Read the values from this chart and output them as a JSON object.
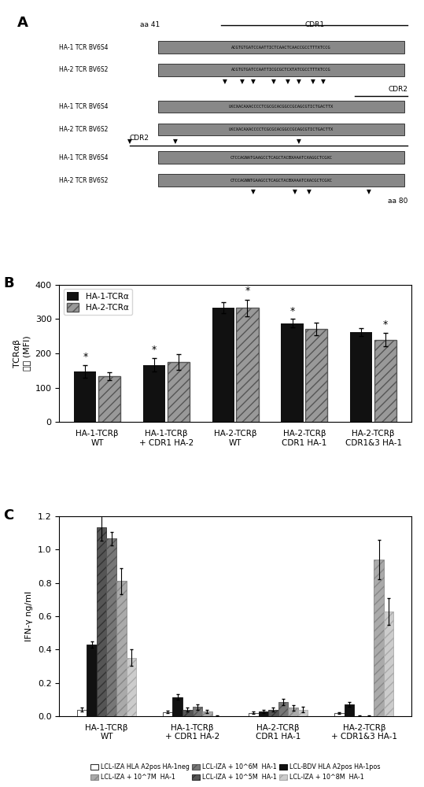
{
  "panel_B": {
    "groups": [
      "HA-1-TCRβ\nWT",
      "HA-1-TCRβ\n+ CDR1 HA-2",
      "HA-2-TCRβ\nWT",
      "HA-2-TCRβ\nCDR1 HA-1",
      "HA-2-TCRβ\nCDR1&3 HA-1"
    ],
    "ha1_values": [
      148,
      167,
      333,
      288,
      262
    ],
    "ha2_values": [
      134,
      175,
      332,
      272,
      240
    ],
    "ha1_errors": [
      18,
      20,
      15,
      12,
      12
    ],
    "ha2_errors": [
      12,
      22,
      25,
      18,
      20
    ],
    "ha1_color": "#111111",
    "ha2_color": "#999999",
    "ha2_hatch": "///",
    "ylabel_top": "TCRαβ",
    "ylabel_bottom": "表达 (MFI)",
    "ylim": [
      0,
      400
    ],
    "yticks": [
      0,
      100,
      200,
      300,
      400
    ],
    "legend_labels": [
      "HA-1-TCRα",
      "HA-2-TCRα"
    ],
    "star_x_adjust": [
      0,
      0,
      1,
      0,
      0
    ]
  },
  "panel_C": {
    "groups": [
      "HA-1-TCRβ\nWT",
      "HA-1-TCRβ\n+ CDR1 HA-2",
      "HA-2-TCRβ\nCDR1 HA-1",
      "HA-2-TCRβ\n+ CDR1&3 HA-1"
    ],
    "series_order": [
      0,
      1,
      2,
      3,
      4,
      5
    ],
    "series": [
      {
        "label": "LCL-IZA HLA A2pos HA-1neg",
        "values": [
          0.04,
          0.025,
          0.02,
          0.02
        ],
        "errors": [
          0.01,
          0.008,
          0.008,
          0.005
        ],
        "color": "#ffffff",
        "hatch": "",
        "edgecolor": "#333333"
      },
      {
        "label": "LCL-BDV HLA A2pos HA-1pos",
        "values": [
          0.43,
          0.115,
          0.03,
          0.07
        ],
        "errors": [
          0.02,
          0.015,
          0.01,
          0.015
        ],
        "color": "#111111",
        "hatch": "",
        "edgecolor": "#111111"
      },
      {
        "label": "LCL-IZA + 10^5M  HA-1",
        "values": [
          1.135,
          0.04,
          0.04,
          0.0
        ],
        "errors": [
          0.08,
          0.01,
          0.01,
          0.005
        ],
        "color": "#555555",
        "hatch": "///",
        "edgecolor": "#333333"
      },
      {
        "label": "LCL-IZA + 10^6M  HA-1",
        "values": [
          1.065,
          0.055,
          0.085,
          0.0
        ],
        "errors": [
          0.04,
          0.015,
          0.02,
          0.005
        ],
        "color": "#777777",
        "hatch": "///",
        "edgecolor": "#555555"
      },
      {
        "label": "LCL-IZA + 10^7M  HA-1",
        "values": [
          0.81,
          0.03,
          0.05,
          0.94
        ],
        "errors": [
          0.08,
          0.01,
          0.015,
          0.12
        ],
        "color": "#aaaaaa",
        "hatch": "///",
        "edgecolor": "#888888"
      },
      {
        "label": "LCL-IZA + 10^8M  HA-1",
        "values": [
          0.35,
          0.0,
          0.04,
          0.63
        ],
        "errors": [
          0.05,
          0.005,
          0.015,
          0.08
        ],
        "color": "#cccccc",
        "hatch": "///",
        "edgecolor": "#aaaaaa"
      }
    ],
    "ylabel": "IFN-γ ng/ml",
    "ylim": [
      0,
      1.2
    ],
    "yticks": [
      0,
      0.2,
      0.4,
      0.6,
      0.8,
      1.0,
      1.2
    ],
    "legend": [
      {
        "label": "LCL-IZA HLA A2pos HA-1neg",
        "color": "#ffffff",
        "hatch": "",
        "edgecolor": "#333333"
      },
      {
        "label": "LCL-IZA + 10^5M  HA-1",
        "color": "#555555",
        "hatch": "///",
        "edgecolor": "#333333"
      },
      {
        "label": "LCL-IZA + 10^7M  HA-1",
        "color": "#aaaaaa",
        "hatch": "///",
        "edgecolor": "#888888"
      },
      {
        "label": "LCL-BDV HLA A2pos HA-1pos",
        "color": "#111111",
        "hatch": "",
        "edgecolor": "#111111"
      },
      {
        "label": "LCL-IZA + 10^6M  HA-1",
        "color": "#777777",
        "hatch": "///",
        "edgecolor": "#555555"
      },
      {
        "label": "LCL-IZA + 10^8M  HA-1",
        "color": "#cccccc",
        "hatch": "///",
        "edgecolor": "#aaaaaa"
      }
    ]
  },
  "panel_A": {
    "row1_label_left": "aa 41",
    "row1_cdr1_label": "CDR1",
    "row1_cdr1_line": [
      0.46,
      0.99
    ],
    "row1_seq1_label": "HA-1 TCR BV6S4",
    "row1_seq2_label": "HA-2 TCR BV6S2",
    "row1_arrows": [
      0.47,
      0.52,
      0.55,
      0.61,
      0.65,
      0.68,
      0.72,
      0.75
    ],
    "row2_cdr2_label": "CDR2",
    "row2_cdr2_line": [
      0.84,
      0.99
    ],
    "row2_seq1_label": "HA-1 TCR BV6S4",
    "row2_seq2_label": "HA-2 TCR BV6S2",
    "row2_arrows": [
      0.2,
      0.33,
      0.68
    ],
    "row3_cdr2_label": "CDR2",
    "row3_cdr2_line": [
      0.2,
      0.99
    ],
    "row3_seq1_label": "HA-1 TCR BV6S4",
    "row3_seq2_label": "HA-2 TCR BV6S2",
    "row3_arrows": [
      0.55,
      0.67,
      0.71,
      0.88
    ],
    "row3_label_right": "aa 80"
  }
}
